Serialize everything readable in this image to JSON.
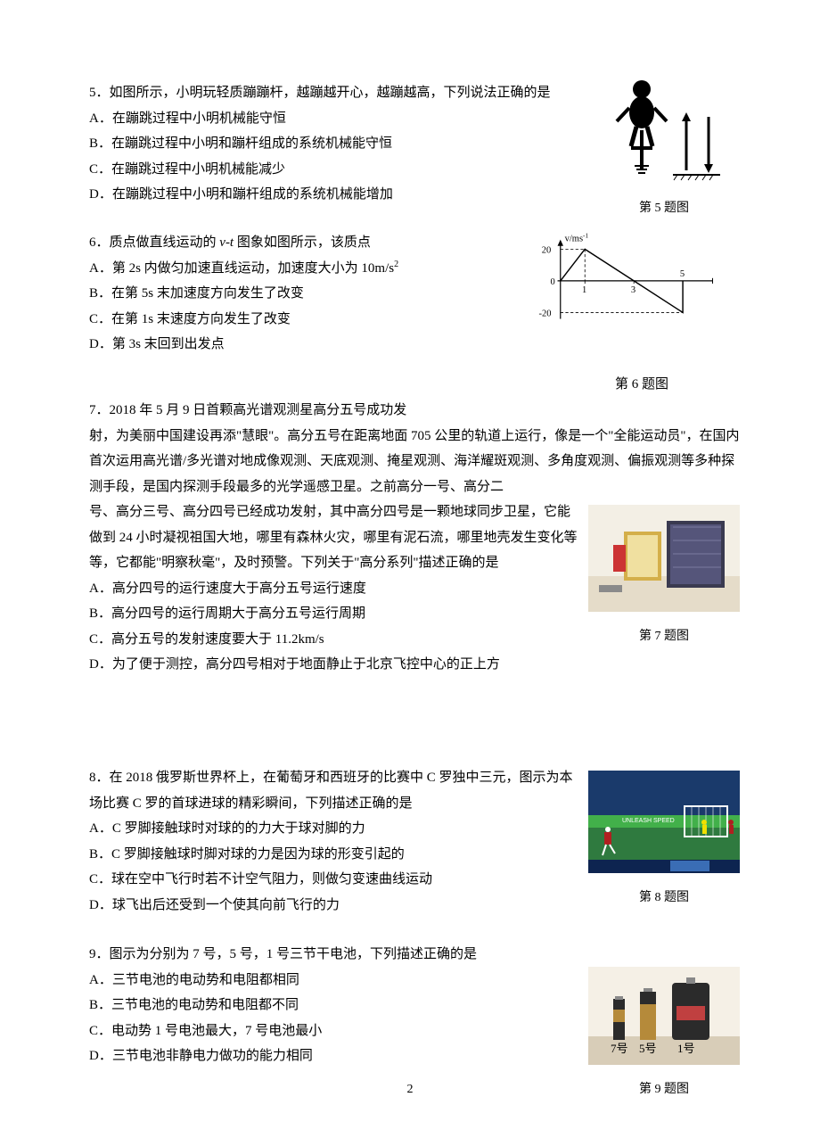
{
  "page_number": "2",
  "q5": {
    "num": "5．",
    "stem": "如图所示，小明玩轻质蹦蹦杆，越蹦越开心，越蹦越高，下列说法正确的是",
    "A": "A．在蹦跳过程中小明机械能守恒",
    "B": "B．在蹦跳过程中小明和蹦杆组成的系统机械能守恒",
    "C": "C．在蹦跳过程中小明机械能减少",
    "D": "D．在蹦跳过程中小明和蹦杆组成的系统机械能增加",
    "caption": "第 5 题图"
  },
  "q6": {
    "num": "6．",
    "stem_a": "质点做直线运动的 ",
    "stem_b": " 图象如图所示，该质点",
    "vt": "v-t",
    "A_a": "A．第 2s 内做匀加速直线运动，加速度大小为 10m/s",
    "A_sup": "2",
    "B": "B．在第 5s 末加速度方向发生了改变",
    "C": "C．在第 1s 末速度方向发生了改变",
    "D": "D．第 3s 末回到出发点",
    "caption": "第 6 题图",
    "chart": {
      "type": "line",
      "x_label": "t/s",
      "y_label_a": "v/ms",
      "y_label_sup": "-1",
      "x_ticks": [
        0,
        1,
        3,
        5
      ],
      "y_ticks": [
        -20,
        0,
        20
      ],
      "points": [
        [
          0,
          0
        ],
        [
          1,
          20
        ],
        [
          3,
          0
        ],
        [
          5,
          -20
        ],
        [
          5,
          0
        ]
      ],
      "axis_color": "#000000",
      "line_color": "#000000",
      "dash_color": "#000000",
      "background": "#ffffff"
    }
  },
  "q7": {
    "num": "7．",
    "stem_l1": "2018 年 5 月 9 日首颗高光谱观测星高分五号成功发",
    "stem_rest": "射，为美丽中国建设再添\"慧眼\"。高分五号在距离地面 705 公里的轨道上运行，像是一个\"全能运动员\"，在国内首次运用高光谱/多光谱对地成像观测、天底观测、掩星观测、海洋耀斑观测、多角度观测、偏振观测等多种探测手段，是国内探测手段最多的光学遥感卫星。之前高分一号、高分二",
    "stem_rest2": "号、高分三号、高分四号已经成功发射，其中高分四号是一颗地球同步卫星，它能做到 24 小时凝视祖国大地，哪里有森林火灾，哪里有泥石流，哪里地壳发生变化等等，它都能\"明察秋毫\"，及时预警。下列关于\"高分系列\"描述正确的是",
    "A": "A．高分四号的运行速度大于高分五号运行速度",
    "B": "B．高分四号的运行周期大于高分五号运行周期",
    "C": "C．高分五号的发射速度要大于 11.2km/s",
    "D": "D．为了便于测控，高分四号相对于地面静止于北京飞控中心的正上方",
    "caption": "第 7 题图",
    "image": {
      "bg": "#f3efe5",
      "panel": "#3a3a50",
      "accent": "#cc3333"
    }
  },
  "q8": {
    "num": "8．",
    "stem": "在 2018 俄罗斯世界杯上，在葡萄牙和西班牙的比赛中 C 罗独中三元，图示为本场比赛 C 罗的首球进球的精彩瞬间，下列描述正确的是",
    "A": "A．C 罗脚接触球时对球的的力大于球对脚的力",
    "B": "B．C 罗脚接触球时脚对球的力是因为球的形变引起的",
    "C": "C．球在空中飞行时若不计空气阻力，则做匀变速曲线运动",
    "D": "D．球飞出后还受到一个使其向前飞行的力",
    "caption": "第 8 题图",
    "image": {
      "sky": "#1a3a6b",
      "pitch": "#2f7a3f",
      "board": "#42b04a"
    }
  },
  "q9": {
    "num": "9．",
    "stem": "图示为分别为 7 号，5 号，1 号三节干电池，下列描述正确的是",
    "A": "A．三节电池的电动势和电阻都相同",
    "B": "B．三节电池的电动势和电阻都不同",
    "C": "C．电动势 1 号电池最大，7 号电池最小",
    "D": "D．三节电池非静电力做功的能力相同",
    "caption": "第 9 题图",
    "image": {
      "bg": "#f5f0e6",
      "label7": "7号",
      "label5": "5号",
      "label1": "1号",
      "b1": "#2b2b2b",
      "b2": "#b58a3a",
      "b3": "#2b2b2b",
      "table": "#d8cdb8"
    }
  }
}
